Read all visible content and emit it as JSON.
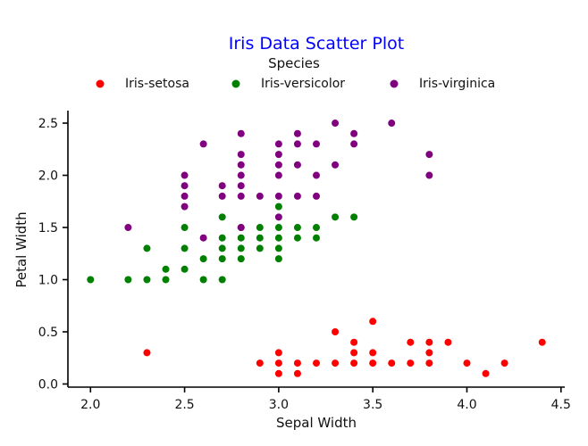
{
  "chart_data": {
    "type": "scatter",
    "title": "Iris Data Scatter Plot",
    "xlabel": "Sepal Width",
    "ylabel": "Petal Width",
    "xlim": [
      1.88,
      4.52
    ],
    "ylim": [
      -0.03,
      2.62
    ],
    "x_ticks": [
      2.0,
      2.5,
      3.0,
      3.5,
      4.0,
      4.5
    ],
    "y_ticks": [
      0.0,
      0.5,
      1.0,
      1.5,
      2.0,
      2.5
    ],
    "grid": false,
    "legend": {
      "title": "Species",
      "placement": "top"
    },
    "series": [
      {
        "name": "Iris-setosa",
        "color": "#ff0000",
        "points": [
          [
            2.3,
            0.3
          ],
          [
            2.9,
            0.2
          ],
          [
            3.0,
            0.1
          ],
          [
            3.0,
            0.2
          ],
          [
            3.0,
            0.3
          ],
          [
            3.1,
            0.1
          ],
          [
            3.1,
            0.2
          ],
          [
            3.2,
            0.2
          ],
          [
            3.3,
            0.2
          ],
          [
            3.3,
            0.5
          ],
          [
            3.4,
            0.2
          ],
          [
            3.4,
            0.3
          ],
          [
            3.4,
            0.4
          ],
          [
            3.5,
            0.2
          ],
          [
            3.5,
            0.3
          ],
          [
            3.5,
            0.6
          ],
          [
            3.6,
            0.2
          ],
          [
            3.7,
            0.2
          ],
          [
            3.7,
            0.4
          ],
          [
            3.8,
            0.2
          ],
          [
            3.8,
            0.3
          ],
          [
            3.8,
            0.4
          ],
          [
            3.9,
            0.4
          ],
          [
            4.0,
            0.2
          ],
          [
            4.1,
            0.1
          ],
          [
            4.2,
            0.2
          ],
          [
            4.4,
            0.4
          ]
        ]
      },
      {
        "name": "Iris-versicolor",
        "color": "#008000",
        "points": [
          [
            2.0,
            1.0
          ],
          [
            2.2,
            1.0
          ],
          [
            2.3,
            1.0
          ],
          [
            2.3,
            1.3
          ],
          [
            2.4,
            1.0
          ],
          [
            2.4,
            1.1
          ],
          [
            2.5,
            1.1
          ],
          [
            2.5,
            1.3
          ],
          [
            2.5,
            1.5
          ],
          [
            2.6,
            1.0
          ],
          [
            2.6,
            1.2
          ],
          [
            2.7,
            1.0
          ],
          [
            2.7,
            1.2
          ],
          [
            2.7,
            1.3
          ],
          [
            2.7,
            1.4
          ],
          [
            2.7,
            1.6
          ],
          [
            2.8,
            1.2
          ],
          [
            2.8,
            1.3
          ],
          [
            2.8,
            1.4
          ],
          [
            2.8,
            1.5
          ],
          [
            2.9,
            1.3
          ],
          [
            2.9,
            1.4
          ],
          [
            2.9,
            1.5
          ],
          [
            3.0,
            1.2
          ],
          [
            3.0,
            1.3
          ],
          [
            3.0,
            1.4
          ],
          [
            3.0,
            1.5
          ],
          [
            3.0,
            1.7
          ],
          [
            3.1,
            1.4
          ],
          [
            3.1,
            1.5
          ],
          [
            3.2,
            1.4
          ],
          [
            3.2,
            1.5
          ],
          [
            3.3,
            1.6
          ],
          [
            3.4,
            1.6
          ]
        ]
      },
      {
        "name": "Iris-virginica",
        "color": "#800080",
        "points": [
          [
            2.2,
            1.5
          ],
          [
            2.5,
            1.7
          ],
          [
            2.5,
            1.8
          ],
          [
            2.5,
            1.9
          ],
          [
            2.5,
            2.0
          ],
          [
            2.6,
            1.4
          ],
          [
            2.6,
            2.3
          ],
          [
            2.7,
            1.8
          ],
          [
            2.7,
            1.9
          ],
          [
            2.8,
            1.5
          ],
          [
            2.8,
            1.8
          ],
          [
            2.8,
            1.9
          ],
          [
            2.8,
            2.0
          ],
          [
            2.8,
            2.1
          ],
          [
            2.8,
            2.2
          ],
          [
            2.8,
            2.4
          ],
          [
            2.9,
            1.8
          ],
          [
            3.0,
            1.6
          ],
          [
            3.0,
            1.8
          ],
          [
            3.0,
            2.0
          ],
          [
            3.0,
            2.1
          ],
          [
            3.0,
            2.2
          ],
          [
            3.0,
            2.3
          ],
          [
            3.1,
            1.8
          ],
          [
            3.1,
            2.1
          ],
          [
            3.1,
            2.3
          ],
          [
            3.1,
            2.4
          ],
          [
            3.2,
            1.8
          ],
          [
            3.2,
            2.0
          ],
          [
            3.2,
            2.3
          ],
          [
            3.3,
            2.1
          ],
          [
            3.3,
            2.5
          ],
          [
            3.4,
            2.3
          ],
          [
            3.4,
            2.4
          ],
          [
            3.6,
            2.5
          ],
          [
            3.8,
            2.0
          ],
          [
            3.8,
            2.2
          ]
        ]
      }
    ]
  }
}
